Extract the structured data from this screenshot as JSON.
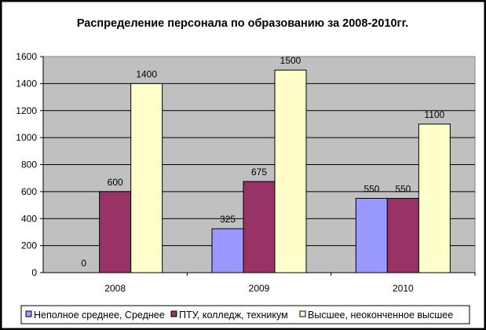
{
  "chart_data": {
    "type": "bar",
    "title": "Распределение персонала по образованию за 2008-2010гг.",
    "categories": [
      "2008",
      "2009",
      "2010"
    ],
    "series": [
      {
        "name": "Неполное среднее, Среднее",
        "values": [
          0,
          325,
          550
        ],
        "color": "#9999FF"
      },
      {
        "name": "ПТУ, колледж, техникум",
        "values": [
          600,
          675,
          550
        ],
        "color": "#993366"
      },
      {
        "name": "Высшее, неоконченное высшее",
        "values": [
          1400,
          1500,
          1100
        ],
        "color": "#FFFFCC"
      }
    ],
    "data_labels": [
      [
        "0",
        "325",
        "550"
      ],
      [
        "600",
        "675",
        "550"
      ],
      [
        "1400",
        "1500",
        "1100"
      ]
    ],
    "ylim": [
      0,
      1600
    ],
    "yticks": [
      "0",
      "200",
      "400",
      "600",
      "800",
      "1000",
      "1200",
      "1400",
      "1600"
    ],
    "xlabel": "",
    "ylabel": "",
    "grid": true,
    "legend_position": "bottom",
    "plot_background": "#C0C0C0",
    "chart_background": "#FFFFFF",
    "outer_border": "#000000"
  }
}
